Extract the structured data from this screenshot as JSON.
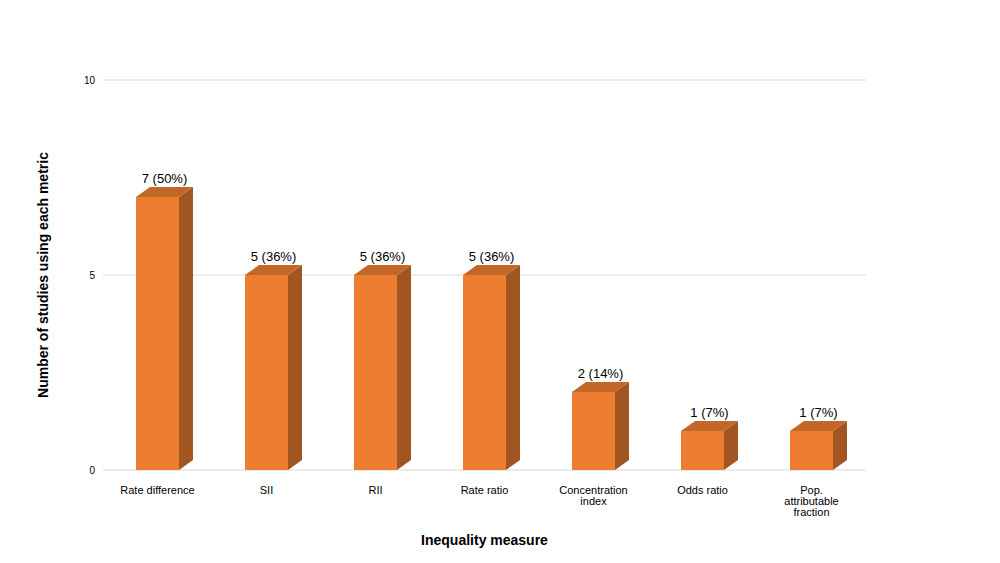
{
  "chart_data": {
    "type": "bar",
    "categories": [
      "Rate difference",
      "SII",
      "RII",
      "Rate ratio",
      "Concentration index",
      "Odds ratio",
      "Pop. attributable fraction"
    ],
    "values": [
      7,
      5,
      5,
      5,
      2,
      1,
      1
    ],
    "value_labels": [
      "7 (50%)",
      "5 (36%)",
      "5 (36%)",
      "5 (36%)",
      "2 (14%)",
      "1 (7%)",
      "1 (7%)"
    ],
    "data_labels": true,
    "color": "#ed7d31",
    "x_label": "Inequality measure",
    "y_label": "Number of studies using each metric",
    "ylim": [
      0,
      10
    ],
    "yticks": [
      0,
      5,
      10
    ],
    "grid": true
  }
}
